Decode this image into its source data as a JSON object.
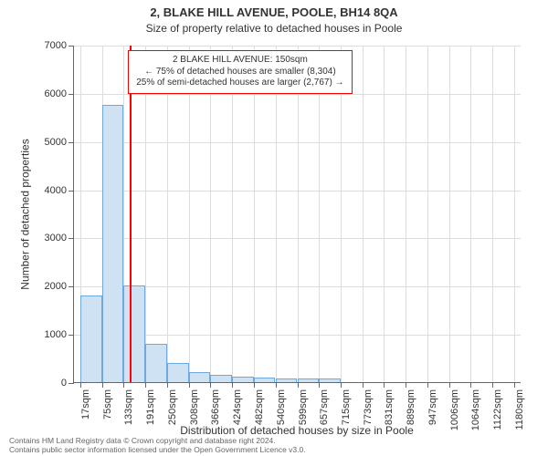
{
  "chart": {
    "type": "histogram",
    "title": "2, BLAKE HILL AVENUE, POOLE, BH14 8QA",
    "title_fontsize": 13,
    "subtitle": "Size of property relative to detached houses in Poole",
    "subtitle_fontsize": 12,
    "y_axis_title": "Number of detached properties",
    "x_axis_title": "Distribution of detached houses by size in Poole",
    "axis_title_fontsize": 12,
    "tick_fontsize": 11,
    "background_color": "#ffffff",
    "grid_color": "#dddddd",
    "axis_color": "#666666",
    "bar_fill": "#cfe2f3",
    "bar_stroke": "#6fa8dc",
    "xlim": [
      0,
      1200
    ],
    "ylim": [
      0,
      7000
    ],
    "y_ticks": [
      0,
      1000,
      2000,
      3000,
      4000,
      5000,
      6000,
      7000
    ],
    "x_ticks": [
      17,
      75,
      133,
      191,
      250,
      308,
      366,
      424,
      482,
      540,
      599,
      657,
      715,
      773,
      831,
      889,
      947,
      1006,
      1064,
      1122,
      1180
    ],
    "x_tick_suffix": "sqm",
    "bin_width": 58,
    "bins_start": [
      17,
      75,
      133,
      191,
      250,
      308,
      366,
      424,
      482,
      540,
      599,
      657,
      715,
      773,
      831,
      889,
      947,
      1006,
      1064,
      1122
    ],
    "values": [
      1800,
      5750,
      2000,
      800,
      400,
      200,
      150,
      120,
      100,
      80,
      80,
      70,
      0,
      0,
      0,
      0,
      0,
      0,
      0,
      0
    ],
    "marker": {
      "value": 150,
      "color": "#ff0000",
      "width": 2
    },
    "annotation": {
      "lines": [
        "2 BLAKE HILL AVENUE: 150sqm",
        "← 75% of detached houses are smaller (8,304)",
        "25% of semi-detached houses are larger (2,767) →"
      ],
      "border_color": "#ff0000",
      "background": "#ffffff",
      "fontsize": 10,
      "left_sqm": 145,
      "top_count": 6900
    }
  },
  "footer": {
    "line1": "Contains HM Land Registry data © Crown copyright and database right 2024.",
    "line2": "Contains public sector information licensed under the Open Government Licence v3.0."
  }
}
